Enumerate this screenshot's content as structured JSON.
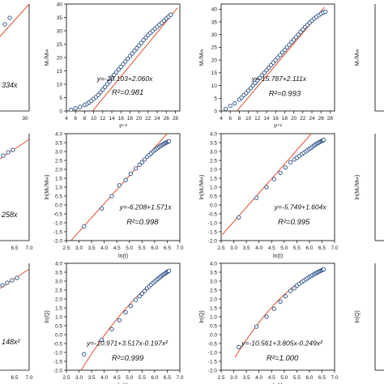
{
  "figure": {
    "edge_fragments": [
      {
        "id": "r1c0",
        "text": "334x"
      },
      {
        "id": "r2c0",
        "text": "258x"
      },
      {
        "id": "r3c0",
        "text": "148x²"
      }
    ],
    "edge_axis_label_r1c4": "Mₜ/M∞",
    "edge_axis_label_r2c4": "ln(Mₜ/M∞)",
    "edge_axis_label_r3c4": "ln(Q)"
  },
  "chart_data": [
    {
      "id": "p11",
      "type": "scatter",
      "xlabel": "t¹ᐟ²",
      "ylabel": "Mₜ/M∞",
      "xlim": [
        4,
        29
      ],
      "ylim": [
        0,
        40
      ],
      "xticks": [
        4,
        6,
        8,
        10,
        12,
        14,
        16,
        18,
        20,
        22,
        24,
        26,
        28
      ],
      "xtick_labels": [
        "4",
        "6",
        "8",
        "10",
        "12",
        "14",
        "16",
        "18",
        "20",
        "22",
        "24",
        "26",
        "28"
      ],
      "yticks": [
        0,
        5,
        10,
        15,
        20,
        25,
        30,
        35,
        40
      ],
      "ytick_labels": [
        "0",
        "5",
        "10",
        "15",
        "20",
        "25",
        "30",
        "35",
        "40"
      ],
      "points": {
        "x": [
          5,
          6,
          7,
          8,
          8.5,
          9,
          9.5,
          10,
          10.5,
          11,
          11.5,
          12,
          12.5,
          13,
          13.5,
          14,
          14.5,
          15,
          15.5,
          16,
          16.5,
          17,
          17.5,
          18,
          18.5,
          19,
          19.5,
          20,
          20.5,
          21,
          21.5,
          22,
          22.5,
          23,
          23.5,
          24,
          24.5,
          25,
          25.5,
          26,
          26.5,
          27
        ],
        "y": [
          0.5,
          1,
          1.5,
          2.2,
          2.7,
          3.2,
          3.8,
          4.5,
          5.2,
          6,
          7,
          8,
          9,
          10,
          11,
          12.5,
          13.5,
          14.5,
          15.5,
          16.5,
          17.5,
          18.5,
          19.5,
          20.5,
          21.5,
          22.5,
          23.5,
          24.5,
          25.5,
          26.5,
          27.5,
          28.5,
          29.2,
          30,
          30.8,
          31.5,
          32.3,
          33,
          33.8,
          34.6,
          35.3,
          36
        ]
      },
      "fit": {
        "slope": 2.06,
        "intercept": -20.103,
        "x_range": [
          9.8,
          28.5
        ]
      },
      "equation": "y=-20.103+2.060x",
      "r2_label": "R²=0.981"
    },
    {
      "id": "p12",
      "type": "scatter",
      "xlabel": "t¹ᐟ²",
      "ylabel": "Mₜ/M∞",
      "xlim": [
        4,
        29
      ],
      "ylim": [
        0,
        42
      ],
      "xticks": [
        4,
        6,
        8,
        10,
        12,
        14,
        16,
        18,
        20,
        22,
        24,
        26,
        28
      ],
      "xtick_labels": [
        "4",
        "6",
        "8",
        "10",
        "12",
        "14",
        "16",
        "18",
        "20",
        "22",
        "24",
        "26",
        "28"
      ],
      "yticks": [
        0,
        5,
        10,
        15,
        20,
        25,
        30,
        35,
        40
      ],
      "ytick_labels": [
        "0",
        "5",
        "10",
        "15",
        "20",
        "25",
        "30",
        "35",
        "40"
      ],
      "points": {
        "x": [
          5,
          6,
          7,
          8,
          8.5,
          9,
          9.5,
          10,
          10.5,
          11,
          11.5,
          12,
          12.5,
          13,
          13.5,
          14,
          14.5,
          15,
          15.5,
          16,
          16.5,
          17,
          17.5,
          18,
          18.5,
          19,
          19.5,
          20,
          20.5,
          21,
          21.5,
          22,
          22.5,
          23,
          23.5,
          24,
          24.5,
          25,
          25.5,
          26,
          26.5,
          27
        ],
        "y": [
          0.8,
          2,
          3,
          4.5,
          5.3,
          6.2,
          7,
          8,
          9,
          10,
          11,
          12,
          13,
          14,
          15,
          16,
          17,
          18,
          19,
          20,
          21,
          22,
          23,
          24,
          25,
          26,
          27,
          28,
          29,
          30,
          31,
          32,
          33,
          33.8,
          34.7,
          35.5,
          36.3,
          37,
          37.6,
          38.2,
          38.7,
          39
        ]
      },
      "fit": {
        "slope": 2.111,
        "intercept": -15.787,
        "x_range": [
          7.5,
          26.8
        ]
      },
      "equation": "y=-15.787+2.111x",
      "r2_label": "R²=0.993"
    },
    {
      "id": "p21",
      "type": "scatter",
      "xlabel": "ln(t)",
      "ylabel": "ln(Mₜ/M∞)",
      "xlim": [
        2.5,
        7.0
      ],
      "ylim": [
        -2.0,
        4.0
      ],
      "xticks": [
        2.5,
        3.0,
        3.5,
        4.0,
        4.5,
        5.0,
        5.5,
        6.0,
        6.5,
        7.0
      ],
      "xtick_labels": [
        "2.5",
        "3.0",
        "3.5",
        "4.0",
        "4.5",
        "5.0",
        "5.5",
        "6.0",
        "6.5",
        "7.0"
      ],
      "yticks": [
        -2.0,
        -1.5,
        -1.0,
        -0.5,
        0.0,
        0.5,
        1.0,
        1.5,
        2.0,
        2.5,
        3.0,
        3.5,
        4.0
      ],
      "ytick_labels": [
        "-2.0",
        "-1.5",
        "-1.0",
        "-0.5",
        "0.0",
        "0.5",
        "1.0",
        "1.5",
        "2.0",
        "2.5",
        "3.0",
        "3.5",
        "4.0"
      ],
      "points": {
        "x": [
          3.2,
          3.9,
          4.3,
          4.6,
          4.85,
          5.05,
          5.25,
          5.4,
          5.5,
          5.6,
          5.7,
          5.78,
          5.86,
          5.93,
          6.0,
          6.06,
          6.12,
          6.18,
          6.23,
          6.28,
          6.33,
          6.37,
          6.42,
          6.46,
          6.5,
          6.54,
          6.57
        ],
        "y": [
          -1.2,
          -0.2,
          0.5,
          1.1,
          1.4,
          1.75,
          2.05,
          2.25,
          2.4,
          2.55,
          2.7,
          2.8,
          2.9,
          3.0,
          3.07,
          3.13,
          3.2,
          3.26,
          3.31,
          3.36,
          3.4,
          3.44,
          3.47,
          3.5,
          3.53,
          3.55,
          3.58
        ]
      },
      "fit": {
        "slope": 1.571,
        "intercept": -6.208,
        "x_range": [
          2.68,
          6.5
        ]
      },
      "equation": "y=-6.208+1.571x",
      "r2_label": "R²=0.998"
    },
    {
      "id": "p22",
      "type": "scatter",
      "xlabel": "ln(t)",
      "ylabel": "ln(Mₜ/M∞)",
      "xlim": [
        2.5,
        7.0
      ],
      "ylim": [
        -2.0,
        4.0
      ],
      "xticks": [
        2.5,
        3.0,
        3.5,
        4.0,
        4.5,
        5.0,
        5.5,
        6.0,
        6.5,
        7.0
      ],
      "xtick_labels": [
        "2.5",
        "3.0",
        "3.5",
        "4.0",
        "4.5",
        "5.0",
        "5.5",
        "6.0",
        "6.5",
        "7.0"
      ],
      "yticks": [
        -2.0,
        -1.5,
        -1.0,
        -0.5,
        0.0,
        0.5,
        1.0,
        1.5,
        2.0,
        2.5,
        3.0,
        3.5,
        4.0
      ],
      "ytick_labels": [
        "-2.0",
        "-1.5",
        "-1.0",
        "-0.5",
        "0.0",
        "0.5",
        "1.0",
        "1.5",
        "2.0",
        "2.5",
        "3.0",
        "3.5",
        "4.0"
      ],
      "points": {
        "x": [
          3.2,
          3.9,
          4.3,
          4.6,
          4.85,
          5.05,
          5.25,
          5.4,
          5.5,
          5.6,
          5.7,
          5.78,
          5.86,
          5.93,
          6.0,
          6.06,
          6.12,
          6.18,
          6.23,
          6.28,
          6.33,
          6.37,
          6.42,
          6.46,
          6.5,
          6.54,
          6.57
        ],
        "y": [
          -0.7,
          0.4,
          1.0,
          1.45,
          1.8,
          2.1,
          2.4,
          2.55,
          2.65,
          2.75,
          2.85,
          2.93,
          3.0,
          3.08,
          3.15,
          3.2,
          3.27,
          3.33,
          3.38,
          3.43,
          3.47,
          3.5,
          3.54,
          3.57,
          3.6,
          3.62,
          3.65
        ]
      },
      "fit": {
        "slope": 1.604,
        "intercept": -5.749,
        "x_range": [
          2.55,
          6.3
        ]
      },
      "equation": "y=-5.749+1.604x",
      "r2_label": "R²=0.995"
    },
    {
      "id": "p31",
      "type": "scatter",
      "xlabel": "ln(t)",
      "ylabel": "ln(Q)",
      "xlim": [
        2.5,
        7.0
      ],
      "ylim": [
        -2.0,
        4.0
      ],
      "xticks": [
        2.5,
        3.0,
        3.5,
        4.0,
        4.5,
        5.0,
        5.5,
        6.0,
        6.5,
        7.0
      ],
      "xtick_labels": [
        "2.5",
        "3.0",
        "3.5",
        "4.0",
        "4.5",
        "5.0",
        "5.5",
        "6.0",
        "6.5",
        "7.0"
      ],
      "yticks": [
        -2.0,
        -1.5,
        -1.0,
        -0.5,
        0.0,
        0.5,
        1.0,
        1.5,
        2.0,
        2.5,
        3.0,
        3.5,
        4.0
      ],
      "ytick_labels": [
        "-2.0",
        "-1.5",
        "-1.0",
        "-0.5",
        "0.0",
        "0.5",
        "1.0",
        "1.5",
        "2.0",
        "2.5",
        "3.0",
        "3.5",
        "4.0"
      ],
      "points": {
        "x": [
          3.2,
          3.9,
          4.3,
          4.6,
          4.85,
          5.05,
          5.25,
          5.4,
          5.5,
          5.6,
          5.7,
          5.78,
          5.86,
          5.93,
          6.0,
          6.06,
          6.12,
          6.18,
          6.23,
          6.28,
          6.33,
          6.37,
          6.42,
          6.46,
          6.5,
          6.54,
          6.57
        ],
        "y": [
          -1.1,
          -0.3,
          0.3,
          0.8,
          1.25,
          1.6,
          1.95,
          2.15,
          2.3,
          2.45,
          2.6,
          2.7,
          2.8,
          2.9,
          2.97,
          3.05,
          3.12,
          3.18,
          3.24,
          3.3,
          3.35,
          3.39,
          3.44,
          3.48,
          3.52,
          3.55,
          3.58
        ]
      },
      "fit": {
        "type": "quadratic",
        "coefficients": [
          -10.971,
          3.517,
          -0.197
        ],
        "x_range": [
          3.05,
          6.55
        ]
      },
      "equation": "y=-10.971+3.517x-0.197x²",
      "r2_label": "R²=0.999"
    },
    {
      "id": "p32",
      "type": "scatter",
      "xlabel": "ln(t)",
      "ylabel": "ln(Q)",
      "xlim": [
        2.5,
        7.0
      ],
      "ylim": [
        -2.0,
        4.0
      ],
      "xticks": [
        2.5,
        3.0,
        3.5,
        4.0,
        4.5,
        5.0,
        5.5,
        6.0,
        6.5,
        7.0
      ],
      "xtick_labels": [
        "2.5",
        "3.0",
        "3.5",
        "4.0",
        "4.5",
        "5.0",
        "5.5",
        "6.0",
        "6.5",
        "7.0"
      ],
      "yticks": [
        -2.0,
        -1.5,
        -1.0,
        -0.5,
        0.0,
        0.5,
        1.0,
        1.5,
        2.0,
        2.5,
        3.0,
        3.5,
        4.0
      ],
      "ytick_labels": [
        "-2.0",
        "-1.5",
        "-1.0",
        "-0.5",
        "0.0",
        "0.5",
        "1.0",
        "1.5",
        "2.0",
        "2.5",
        "3.0",
        "3.5",
        "4.0"
      ],
      "points": {
        "x": [
          3.2,
          3.9,
          4.3,
          4.6,
          4.85,
          5.05,
          5.25,
          5.4,
          5.5,
          5.6,
          5.7,
          5.78,
          5.86,
          5.93,
          6.0,
          6.06,
          6.12,
          6.18,
          6.23,
          6.28,
          6.33,
          6.37,
          6.42,
          6.46,
          6.5,
          6.54,
          6.57
        ],
        "y": [
          -0.7,
          0.45,
          1.0,
          1.45,
          1.85,
          2.15,
          2.45,
          2.6,
          2.75,
          2.85,
          2.95,
          3.03,
          3.1,
          3.17,
          3.23,
          3.28,
          3.33,
          3.38,
          3.42,
          3.46,
          3.5,
          3.53,
          3.56,
          3.59,
          3.62,
          3.64,
          3.66
        ]
      },
      "fit": {
        "type": "quadratic",
        "coefficients": [
          -10.561,
          3.805,
          -0.249
        ],
        "x_range": [
          3.05,
          6.55
        ]
      },
      "equation": "y=-10.561+3.805x-0.249x²",
      "r2_label": "R²=1.000"
    }
  ],
  "colors": {
    "fit_line": "#e0502e",
    "marker_stroke": "#2a4f85",
    "marker_fill": "#ffffff",
    "axis": "#000000"
  }
}
